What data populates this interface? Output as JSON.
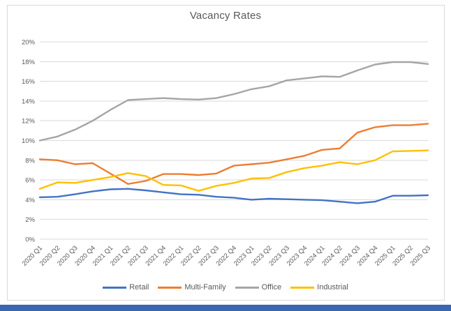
{
  "window": {
    "bottom_strip_color": "#3A66B0"
  },
  "chart_data": {
    "type": "line",
    "title": "Vacancy Rates",
    "categories": [
      "2020 Q1",
      "2020 Q2",
      "2020 Q3",
      "2020 Q4",
      "2021 Q1",
      "2021 Q2",
      "2021 Q3",
      "2021 Q4",
      "2022 Q1",
      "2022 Q2",
      "2022 Q3",
      "2022 Q4",
      "2023 Q1",
      "2023 Q2",
      "2023 Q3",
      "2023 Q4",
      "2024 Q1",
      "2024 Q2",
      "2024 Q3",
      "2024 Q4",
      "2025 Q1",
      "2025 Q2",
      "2025 Q3"
    ],
    "series": [
      {
        "name": "Retail",
        "color": "#4472C4",
        "values": [
          4.25,
          4.3,
          4.55,
          4.85,
          5.05,
          5.1,
          4.95,
          4.75,
          4.55,
          4.5,
          4.3,
          4.2,
          4.0,
          4.1,
          4.05,
          4.0,
          3.95,
          3.8,
          3.65,
          3.8,
          4.4,
          4.4,
          4.45
        ]
      },
      {
        "name": "Multi-Family",
        "color": "#ED7D31",
        "values": [
          8.1,
          8.0,
          7.6,
          7.7,
          6.65,
          5.6,
          5.9,
          6.6,
          6.6,
          6.5,
          6.65,
          7.45,
          7.6,
          7.75,
          8.1,
          8.45,
          9.05,
          9.2,
          10.8,
          11.35,
          11.55,
          11.55,
          11.7
        ]
      },
      {
        "name": "Office",
        "color": "#A5A5A5",
        "values": [
          10.0,
          10.4,
          11.1,
          12.0,
          13.1,
          14.1,
          14.2,
          14.3,
          14.2,
          14.15,
          14.3,
          14.7,
          15.2,
          15.5,
          16.1,
          16.3,
          16.5,
          16.45,
          17.1,
          17.7,
          17.95,
          17.95,
          17.75
        ]
      },
      {
        "name": "Industrial",
        "color": "#FFC000",
        "values": [
          5.1,
          5.75,
          5.7,
          6.0,
          6.3,
          6.7,
          6.4,
          5.5,
          5.45,
          4.9,
          5.4,
          5.7,
          6.15,
          6.2,
          6.8,
          7.2,
          7.45,
          7.8,
          7.6,
          8.0,
          8.9,
          8.95,
          9.0
        ]
      }
    ],
    "y_axis": {
      "min": 0,
      "max": 20,
      "step": 2,
      "labels": [
        "0%",
        "2%",
        "4%",
        "6%",
        "8%",
        "10%",
        "12%",
        "14%",
        "16%",
        "18%",
        "20%"
      ]
    },
    "x_axis": {
      "label_rotation_deg": 45
    },
    "grid": true,
    "legend_position": "bottom",
    "text_color": "#595959",
    "gridline_color": "#D9D9D9"
  }
}
